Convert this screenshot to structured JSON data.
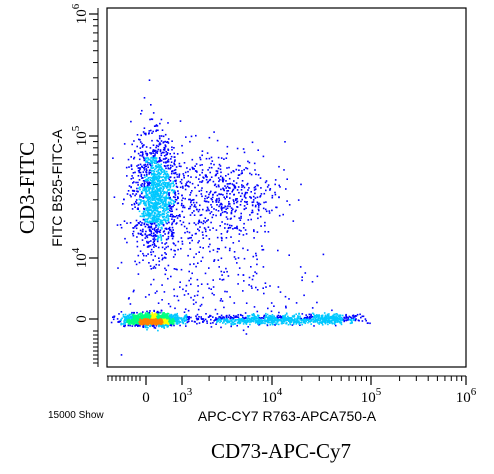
{
  "outer_ylabel": "CD3-FITC",
  "outer_xlabel": "CD73-APC-Cy7",
  "event_count_label": "15000 Show",
  "chart_data": {
    "type": "scatter",
    "plot_style": "flow-cytometry pseudocolor density dot plot",
    "xlabel": "APC-CY7 R763-APCA750-A",
    "ylabel": "FITC B525-FITC-A",
    "x_scale": "biexponential (linear near 0, log above ~10^3)",
    "y_scale": "biexponential (linear near 0, log above ~10^4)",
    "x_ticks": [
      {
        "value": 0,
        "base": "0",
        "exp": ""
      },
      {
        "value": 1000,
        "base": "10",
        "exp": "3"
      },
      {
        "value": 10000,
        "base": "10",
        "exp": "4"
      },
      {
        "value": 100000,
        "base": "10",
        "exp": "5"
      },
      {
        "value": 1000000,
        "base": "10",
        "exp": "6"
      }
    ],
    "y_ticks": [
      {
        "value": 0,
        "base": "0",
        "exp": ""
      },
      {
        "value": 10000,
        "base": "10",
        "exp": "4"
      },
      {
        "value": 100000,
        "base": "10",
        "exp": "5"
      }
    ],
    "y_top_tick": {
      "base": "10",
      "exp": "6"
    },
    "grid": false,
    "legend": "none",
    "events_shown": 15000,
    "populations": [
      {
        "description": "CD3 high, CD73 negative/low",
        "x_center": 250,
        "y_center": 30000,
        "density": "high"
      },
      {
        "description": "CD3 high, CD73 positive",
        "x_center": 3000,
        "y_center": 30000,
        "density": "low"
      },
      {
        "description": "CD3 negative, CD73 negative",
        "x_center": 100,
        "y_center": 0,
        "density": "very high"
      },
      {
        "description": "CD3 negative, CD73 positive",
        "x_center": 15000,
        "y_center": 0,
        "density": "medium"
      }
    ],
    "color_scale": [
      "#0000ff",
      "#00c8ff",
      "#00ff80",
      "#ffff00",
      "#ff8000"
    ]
  }
}
